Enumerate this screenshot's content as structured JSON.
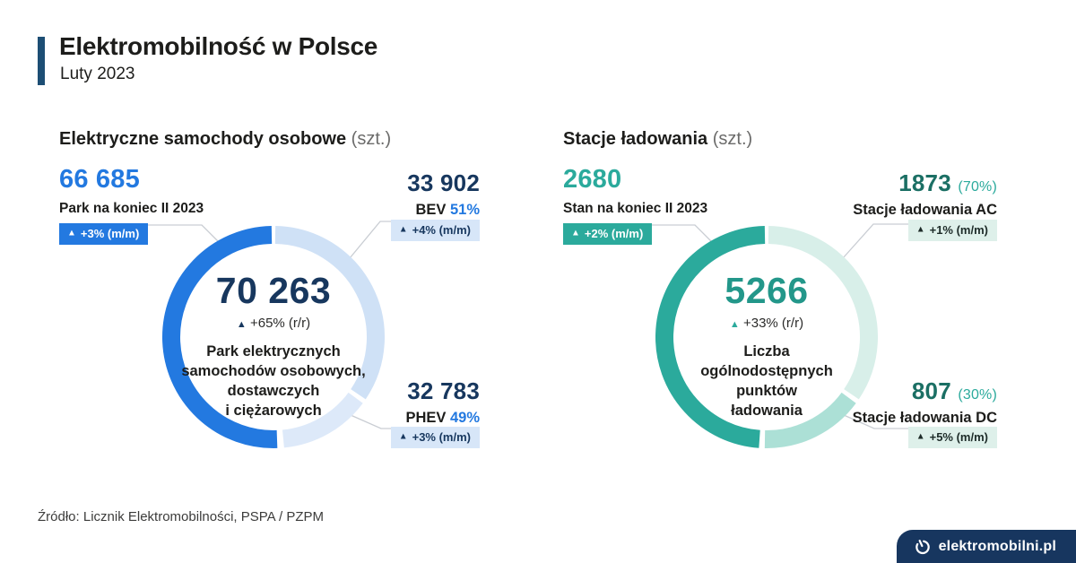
{
  "header": {
    "title": "Elektromobilność w Polsce",
    "subtitle": "Luty 2023"
  },
  "icons": {
    "up": "▲"
  },
  "footer": {
    "source": "Źródło: Licznik Elektromobilności, PSPA / PZPM",
    "brand": "elektromobilni.pl"
  },
  "colors": {
    "navy": "#17375e",
    "accent_bar": "#1d4e74",
    "blue": "#2379e0",
    "teal": "#2baa9c",
    "dark_teal_value": "#1b6f64",
    "light_blue_badge": "#d7e6f8",
    "light_teal_badge": "#def0ea",
    "brand_bg": "#17365f",
    "connector": "#c9cdd3"
  },
  "chart_data": [
    {
      "type": "pie",
      "variant": "donut",
      "title": "Elektryczne samochody osobowe",
      "units": "(szt.)",
      "primary": {
        "value": "66 685",
        "label": "Park na koniec II 2023",
        "change": "+3% (m/m)"
      },
      "center": {
        "value": "70 263",
        "change": "+65% (r/r)",
        "label": "Park elektrycznych\nsamochodów osobowych,\ndostawczych\ni ciężarowych"
      },
      "segments": [
        {
          "name": "BEV",
          "value": "33 902",
          "share_pct": 51,
          "share_label": "51%",
          "change": "+4% (m/m)"
        },
        {
          "name": "PHEV",
          "value": "32 783",
          "share_pct": 49,
          "share_label": "49%",
          "change": "+3% (m/m)"
        }
      ],
      "ring_render": [
        {
          "from": 1,
          "to": 124,
          "color": "#cfe1f6"
        },
        {
          "from": 126.5,
          "to": 174.5,
          "color": "#dde9f9"
        },
        {
          "from": 178,
          "to": 359,
          "color": "#2379e0"
        }
      ]
    },
    {
      "type": "pie",
      "variant": "donut",
      "title": "Stacje ładowania",
      "units": "(szt.)",
      "primary": {
        "value": "2680",
        "label": "Stan na koniec II 2023",
        "change": "+2% (m/m)"
      },
      "center": {
        "value": "5266",
        "change": "+33% (r/r)",
        "label": "Liczba\nogólnodostępnych\npunktów\nładowania"
      },
      "segments": [
        {
          "name": "Stacje ładowania AC",
          "value": "1873",
          "share_pct": 70,
          "share_label": "(70%)",
          "change": "+1% (m/m)"
        },
        {
          "name": "Stacje ładowania DC",
          "value": "807",
          "share_pct": 30,
          "share_label": "(30%)",
          "change": "+5% (m/m)"
        }
      ],
      "ring_render": [
        {
          "from": 1,
          "to": 124,
          "color": "#d8efe9"
        },
        {
          "from": 126.5,
          "to": 181,
          "color": "#ace0d6"
        },
        {
          "from": 184,
          "to": 359,
          "color": "#2baa9c"
        }
      ]
    }
  ]
}
